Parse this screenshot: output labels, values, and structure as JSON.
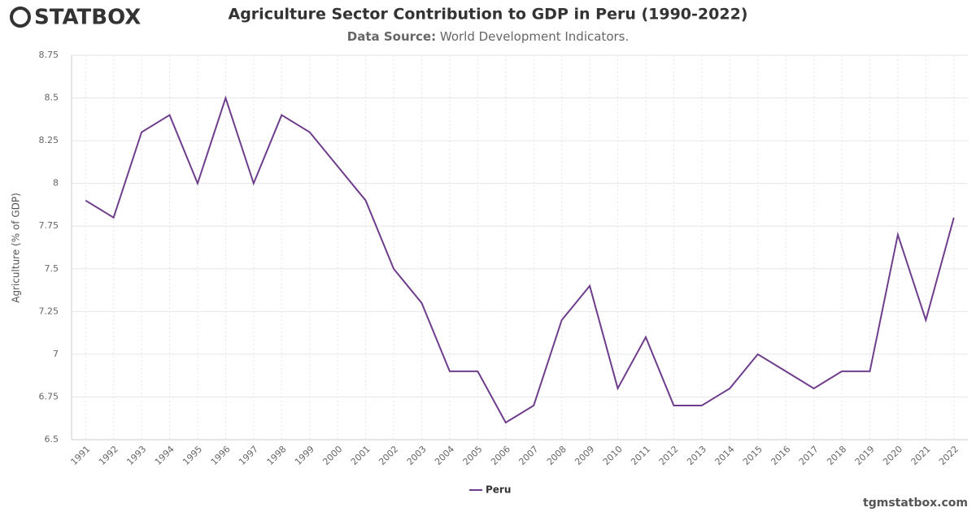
{
  "logo": "STATBOX",
  "footer": "tgmstatbox.com",
  "chart_data": {
    "type": "line",
    "title": "Agriculture Sector Contribution to GDP in Peru (1990-2022)",
    "subtitle_label": "Data Source:",
    "subtitle": "World Development Indicators.",
    "y_label": "Agriculture (% of GDP)",
    "categories": [
      "1991",
      "1992",
      "1993",
      "1994",
      "1995",
      "1996",
      "1997",
      "1998",
      "1999",
      "2000",
      "2001",
      "2002",
      "2003",
      "2004",
      "2005",
      "2006",
      "2007",
      "2008",
      "2009",
      "2010",
      "2011",
      "2012",
      "2013",
      "2014",
      "2015",
      "2016",
      "2017",
      "2018",
      "2019",
      "2020",
      "2021",
      "2022"
    ],
    "series": [
      {
        "name": "Peru",
        "color": "#6e3d8c",
        "values": [
          7.9,
          7.8,
          8.3,
          8.4,
          8.0,
          8.5,
          8.0,
          8.4,
          8.3,
          8.1,
          7.9,
          7.5,
          7.3,
          6.9,
          6.9,
          6.6,
          6.7,
          7.2,
          7.4,
          6.8,
          7.1,
          6.7,
          6.7,
          6.8,
          7.0,
          6.9,
          6.8,
          6.9,
          6.9,
          7.7,
          7.2,
          7.8
        ]
      }
    ],
    "ylim": [
      6.5,
      8.75
    ],
    "yticks": [
      6.5,
      6.75,
      7,
      7.25,
      7.5,
      7.75,
      8,
      8.25,
      8.5,
      8.75
    ],
    "grid": true,
    "legend": "bottom"
  }
}
